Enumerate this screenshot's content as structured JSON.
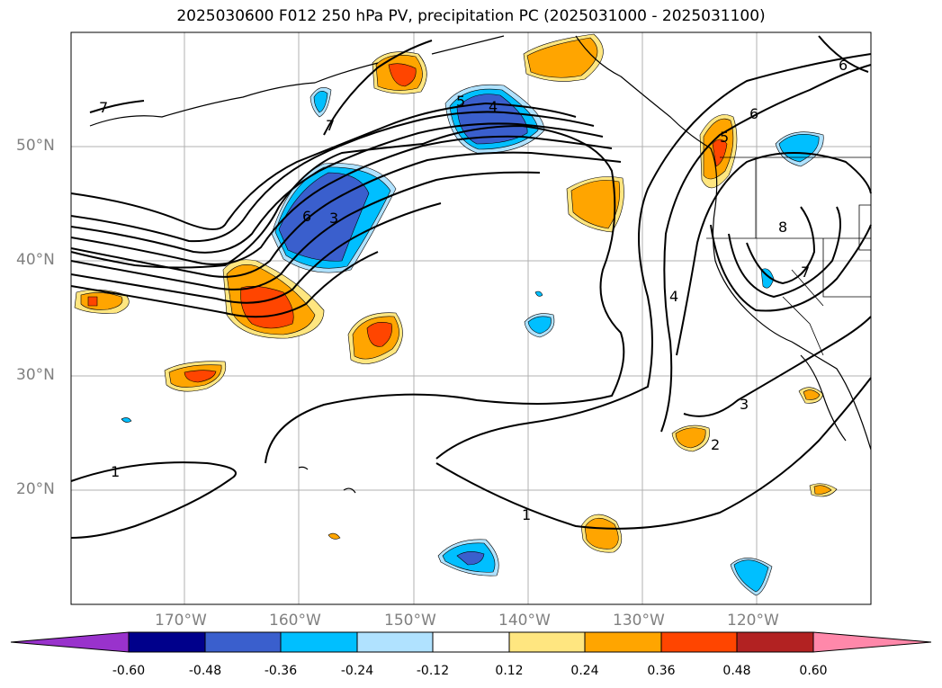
{
  "title": "2025030600 F012 250 hPa PV, precipitation PC (2025031000 - 2025031100)",
  "lat_labels": [
    "50°N",
    "40°N",
    "30°N",
    "20°N"
  ],
  "lon_labels": [
    "170°W",
    "160°W",
    "150°W",
    "140°W",
    "130°W",
    "120°W"
  ],
  "contour_labels": [
    "1",
    "1",
    "2",
    "3",
    "3",
    "4",
    "4",
    "5",
    "5",
    "6",
    "6",
    "6",
    "7",
    "7",
    "7",
    "8"
  ],
  "colorbar": {
    "ticks": [
      "-0.60",
      "-0.48",
      "-0.36",
      "-0.24",
      "-0.12",
      "0.12",
      "0.24",
      "0.36",
      "0.48",
      "0.60"
    ],
    "colors": [
      "#9932cc",
      "#00008b",
      "#3a5fcd",
      "#00bfff",
      "#b0e2ff",
      "#ffffff",
      "#ffe680",
      "#ffa500",
      "#ff4500",
      "#b22222",
      "#ff88aa"
    ]
  },
  "precip_colors": {
    "pos_low": "#ffe680",
    "pos_mid": "#ffa500",
    "pos_high": "#ff4500",
    "neg_low": "#b0e2ff",
    "neg_mid": "#00bfff",
    "neg_high": "#3a5fcd"
  }
}
